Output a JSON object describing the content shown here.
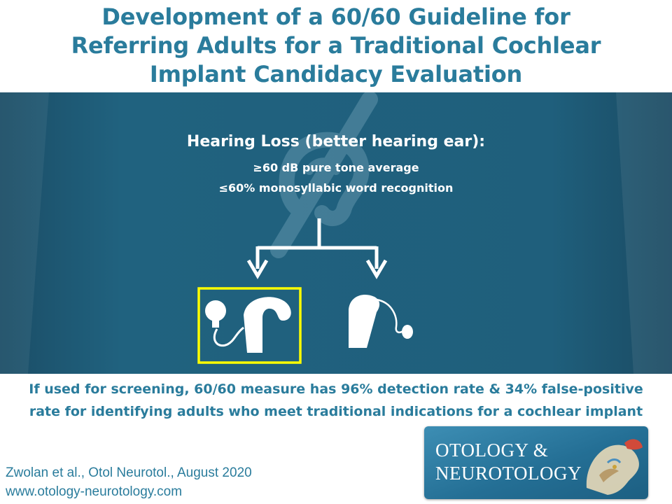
{
  "title_lines": [
    "Development of a 60/60 Guideline for",
    "Referring Adults for a Traditional Cochlear",
    "Implant Candidacy Evaluation"
  ],
  "diagram": {
    "hearing_loss_title": "Hearing Loss (better hearing ear):",
    "criterion_pta": "≥60 dB pure tone average",
    "criterion_word": "≤60% monosyllabic word recognition",
    "background_icon": "hearing-loss-ear-icon",
    "left_option_icon": "cochlear-implant-icon",
    "right_option_icon": "hearing-aid-icon",
    "highlight_color": "#ffff00"
  },
  "finding_lines": [
    "If used for screening, 60/60 measure has 96% detection rate & 34% false-positive",
    "rate for identifying adults who meet traditional indications for a cochlear implant"
  ],
  "citation": {
    "reference": "Zwolan et al., Otol Neurotol., August 2020",
    "website": "www.otology-neurotology.com"
  },
  "journal_logo": {
    "line1": "OTOLOGY &",
    "line2": "NEUROTOLOGY",
    "image_icon": "temporal-bone-icon"
  }
}
